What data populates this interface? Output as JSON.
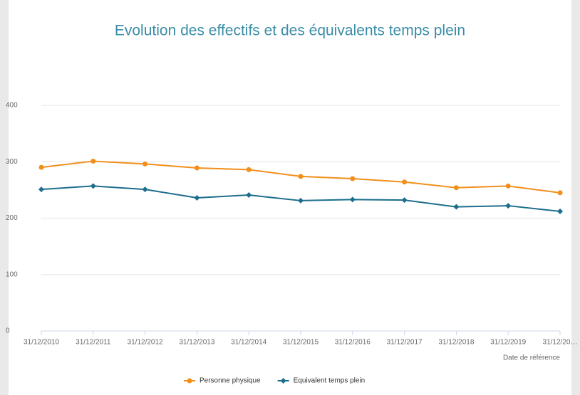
{
  "chart_data": {
    "type": "line",
    "title": "Evolution des effectifs et des équivalents temps plein",
    "x_label": "Date de référence",
    "categories": [
      "31/12/2010",
      "31/12/2011",
      "31/12/2012",
      "31/12/2013",
      "31/12/2014",
      "31/12/2015",
      "31/12/2016",
      "31/12/2017",
      "31/12/2018",
      "31/12/2019",
      "31/12/20…"
    ],
    "series": [
      {
        "name": "Personne physique",
        "color": "#f28f1c",
        "values": [
          290,
          301,
          296,
          289,
          286,
          274,
          270,
          264,
          254,
          257,
          245
        ]
      },
      {
        "name": "Equivalent temps plein",
        "color": "#1c6e8c",
        "values": [
          251,
          257,
          251,
          236,
          241,
          231,
          233,
          232,
          220,
          222,
          212
        ]
      }
    ],
    "ylim": [
      0,
      400
    ],
    "yticks": [
      0,
      100,
      200,
      300,
      400
    ],
    "grid": true,
    "legend": "bottom"
  }
}
